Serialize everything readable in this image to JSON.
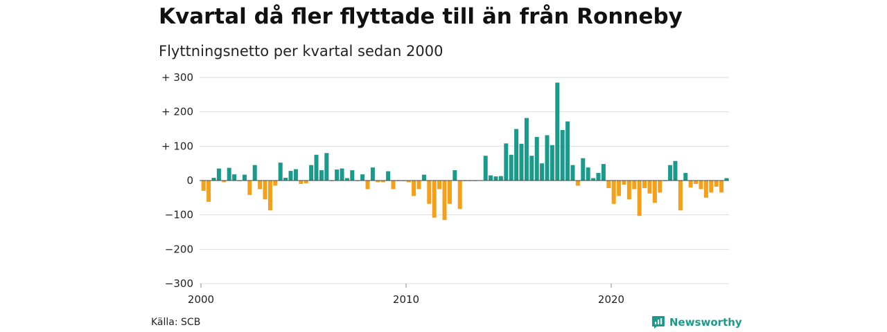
{
  "title": "Kvartal då fler flyttade till än från Ronneby",
  "subtitle": "Flyttningsnetto per kvartal sedan 2000",
  "source": "Källa: SCB",
  "brand": "Newsworthy",
  "colors": {
    "positive": "#1a9a8a",
    "negative": "#f5a01a",
    "grid": "#dddddd",
    "axis": "#888888"
  },
  "chart_data": {
    "type": "bar",
    "ylim": [
      -300,
      300
    ],
    "yticks": [
      300,
      200,
      100,
      0,
      -100,
      -200,
      -300
    ],
    "ytick_labels": [
      "+ 300",
      "+ 200",
      "+ 100",
      "0",
      "−100",
      "−200",
      "−300"
    ],
    "xticks": [
      2000,
      2010,
      2020
    ],
    "xtick_labels": [
      "2000",
      "2010",
      "2020"
    ],
    "x_start": "2000 Q1",
    "values": [
      -30,
      -62,
      8,
      35,
      -5,
      37,
      18,
      -2,
      17,
      -42,
      45,
      -25,
      -55,
      -87,
      -15,
      52,
      8,
      28,
      33,
      -10,
      -8,
      45,
      75,
      30,
      80,
      -2,
      32,
      35,
      7,
      30,
      -2,
      18,
      -25,
      38,
      -5,
      -5,
      27,
      -25,
      -2,
      -2,
      -5,
      -45,
      -25,
      17,
      -68,
      -108,
      -25,
      -115,
      -68,
      30,
      -83,
      -2,
      -2,
      -2,
      0,
      72,
      15,
      12,
      13,
      108,
      75,
      150,
      107,
      182,
      72,
      127,
      50,
      132,
      103,
      285,
      147,
      172,
      45,
      -15,
      65,
      38,
      7,
      22,
      48,
      -22,
      -68,
      -45,
      -12,
      -55,
      -25,
      -103,
      -22,
      -38,
      -65,
      -35,
      -2,
      45,
      57,
      -87,
      22,
      -20,
      -10,
      -25,
      -50,
      -35,
      -18,
      -35,
      7
    ]
  }
}
